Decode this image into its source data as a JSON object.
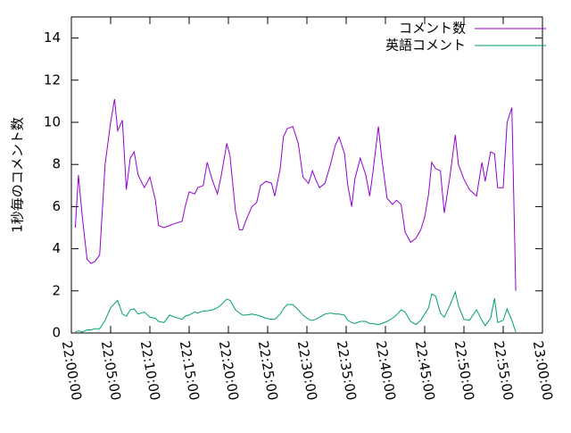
{
  "chart_data": {
    "type": "line",
    "ylabel": "1秒毎のコメント数",
    "xlim": [
      0,
      60
    ],
    "xticks": [
      {
        "value": 0,
        "label": "22:00:00"
      },
      {
        "value": 5,
        "label": "22:05:00"
      },
      {
        "value": 10,
        "label": "22:10:00"
      },
      {
        "value": 15,
        "label": "22:15:00"
      },
      {
        "value": 20,
        "label": "22:20:00"
      },
      {
        "value": 25,
        "label": "22:25:00"
      },
      {
        "value": 30,
        "label": "22:30:00"
      },
      {
        "value": 35,
        "label": "22:35:00"
      },
      {
        "value": 40,
        "label": "22:40:00"
      },
      {
        "value": 45,
        "label": "22:45:00"
      },
      {
        "value": 50,
        "label": "22:50:00"
      },
      {
        "value": 55,
        "label": "22:55:00"
      },
      {
        "value": 60,
        "label": "23:00:00"
      }
    ],
    "ylim": [
      0,
      15
    ],
    "yticks": [
      0,
      2,
      4,
      6,
      8,
      10,
      12,
      14
    ],
    "legend": "top-right",
    "x": [
      0.5,
      0.9,
      1.4,
      2.0,
      2.5,
      3.0,
      3.6,
      4.3,
      5.0,
      5.5,
      5.9,
      6.5,
      7.0,
      7.5,
      8.0,
      8.5,
      9.3,
      10.0,
      10.7,
      11.1,
      11.8,
      12.5,
      13.2,
      14.1,
      14.5,
      15.0,
      15.7,
      16.1,
      16.8,
      17.3,
      18.0,
      18.6,
      19.1,
      19.8,
      20.2,
      20.9,
      21.4,
      21.8,
      22.3,
      23.0,
      23.6,
      24.1,
      24.8,
      25.5,
      25.9,
      26.6,
      27.0,
      27.5,
      28.2,
      28.9,
      29.5,
      30.2,
      30.7,
      31.1,
      31.6,
      32.3,
      33.0,
      33.6,
      34.1,
      34.8,
      35.2,
      35.7,
      36.1,
      36.8,
      37.5,
      38.0,
      38.4,
      39.1,
      39.5,
      40.2,
      40.9,
      41.4,
      42.0,
      42.5,
      43.2,
      43.9,
      44.5,
      45.0,
      45.5,
      45.9,
      46.4,
      47.0,
      47.5,
      48.2,
      48.9,
      49.3,
      50.0,
      50.7,
      51.6,
      52.3,
      52.7,
      53.4,
      53.9,
      54.3,
      55.0,
      55.5,
      56.1,
      56.6
    ],
    "series": [
      {
        "name": "コメント数",
        "color": "#9400d3",
        "values": [
          5.0,
          7.5,
          5.5,
          3.5,
          3.3,
          3.4,
          3.7,
          8,
          10,
          11.1,
          9.6,
          10.1,
          6.8,
          8.3,
          8.6,
          7.5,
          6.9,
          7.4,
          6.3,
          5.1,
          5.0,
          5.1,
          5.2,
          5.3,
          6.0,
          6.7,
          6.6,
          6.9,
          7.0,
          8.1,
          7.2,
          6.6,
          7.5,
          9.0,
          8.4,
          5.8,
          4.9,
          4.9,
          5.4,
          6.0,
          6.2,
          7.0,
          7.2,
          7.1,
          6.5,
          7.8,
          9.3,
          9.7,
          9.8,
          9.0,
          7.4,
          7.1,
          7.7,
          7.3,
          6.9,
          7.1,
          8.0,
          8.9,
          9.3,
          8.5,
          7.0,
          6.0,
          7.3,
          8.3,
          7.5,
          6.5,
          7.6,
          9.8,
          8.4,
          6.4,
          6.1,
          6.3,
          6.1,
          4.8,
          4.3,
          4.5,
          4.9,
          5.5,
          6.6,
          8.1,
          7.8,
          7.7,
          5.7,
          7.4,
          9.4,
          8.0,
          7.3,
          6.8,
          6.5,
          8.1,
          7.2,
          8.6,
          8.5,
          6.9,
          6.9,
          10.0,
          10.7,
          2.0
        ]
      },
      {
        "name": "英語コメント",
        "color": "#009e73",
        "values": [
          0.05,
          0.1,
          0.05,
          0.15,
          0.15,
          0.2,
          0.2,
          0.6,
          1.2,
          1.4,
          1.55,
          0.9,
          0.8,
          1.1,
          1.15,
          0.9,
          1.0,
          0.75,
          0.7,
          0.55,
          0.5,
          0.85,
          0.75,
          0.65,
          0.8,
          0.85,
          1.0,
          0.95,
          1.05,
          1.05,
          1.1,
          1.2,
          1.35,
          1.6,
          1.55,
          1.1,
          0.95,
          0.85,
          0.85,
          0.9,
          0.85,
          0.8,
          0.7,
          0.65,
          0.65,
          0.9,
          1.15,
          1.35,
          1.35,
          1.1,
          0.85,
          0.65,
          0.6,
          0.65,
          0.75,
          0.9,
          0.95,
          0.9,
          0.9,
          0.85,
          0.6,
          0.5,
          0.45,
          0.55,
          0.55,
          0.45,
          0.45,
          0.4,
          0.45,
          0.55,
          0.7,
          0.85,
          1.1,
          1.0,
          0.55,
          0.4,
          0.6,
          0.9,
          1.2,
          1.85,
          1.75,
          0.95,
          0.75,
          1.3,
          1.95,
          1.3,
          0.65,
          0.6,
          1.1,
          0.6,
          0.35,
          0.7,
          1.65,
          0.5,
          0.6,
          1.15,
          0.6,
          0.05
        ]
      }
    ]
  }
}
